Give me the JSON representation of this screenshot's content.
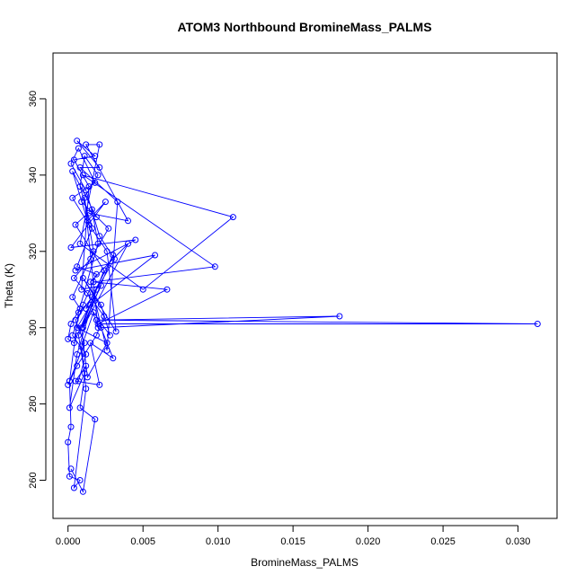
{
  "chart_data": {
    "type": "scatter",
    "title": "ATOM3 Northbound BromineMass_PALMS",
    "xlabel": "BromineMass_PALMS",
    "ylabel": "Theta (K)",
    "xlim": [
      -0.001,
      0.0326
    ],
    "ylim": [
      250,
      372
    ],
    "x_ticks": [
      {
        "value": 0.0,
        "label": "0.000"
      },
      {
        "value": 0.005,
        "label": "0.005"
      },
      {
        "value": 0.01,
        "label": "0.010"
      },
      {
        "value": 0.015,
        "label": "0.015"
      },
      {
        "value": 0.02,
        "label": "0.020"
      },
      {
        "value": 0.025,
        "label": "0.025"
      },
      {
        "value": 0.03,
        "label": "0.030"
      }
    ],
    "y_ticks": [
      {
        "value": 260,
        "label": "260"
      },
      {
        "value": 280,
        "label": "280"
      },
      {
        "value": 300,
        "label": "300"
      },
      {
        "value": 320,
        "label": "320"
      },
      {
        "value": 340,
        "label": "340"
      },
      {
        "value": 360,
        "label": "360"
      }
    ],
    "connect_points": true,
    "marker": "open-circle",
    "grid": false,
    "series": [
      {
        "color": "#0000ff",
        "points": [
          [
            0.0002,
            263
          ],
          [
            0.001,
            257
          ],
          [
            0.0018,
            276
          ],
          [
            0.0008,
            279
          ],
          [
            0.0012,
            290
          ],
          [
            0.0005,
            286
          ],
          [
            0.0021,
            285
          ],
          [
            0.0015,
            296
          ],
          [
            0.003,
            292
          ],
          [
            0.0022,
            300
          ],
          [
            0.0181,
            303
          ],
          [
            0.0019,
            302
          ],
          [
            0.0313,
            301
          ],
          [
            0.002,
            301
          ],
          [
            0.0066,
            310
          ],
          [
            0.0017,
            312
          ],
          [
            0.0098,
            316
          ],
          [
            0.001,
            340
          ],
          [
            0.011,
            329
          ],
          [
            0.005,
            310
          ],
          [
            0.0008,
            322
          ],
          [
            0.0021,
            348
          ],
          [
            0.0012,
            348
          ],
          [
            0.004,
            328
          ],
          [
            0.0014,
            330
          ],
          [
            0.0019,
            329
          ],
          [
            0.0003,
            341
          ],
          [
            0.0013,
            328
          ],
          [
            0.0025,
            333
          ],
          [
            0.0002,
            321
          ],
          [
            0.0045,
            323
          ],
          [
            0.0005,
            315
          ],
          [
            0.0058,
            319
          ],
          [
            0.0012,
            305
          ],
          [
            0.003,
            319
          ],
          [
            0.001,
            300
          ],
          [
            0.004,
            322
          ],
          [
            0.0015,
            312
          ],
          [
            0.0026,
            294
          ],
          [
            0.0033,
            333
          ],
          [
            0.0008,
            342
          ],
          [
            0.0021,
            342
          ],
          [
            0.0006,
            349
          ],
          [
            0.0018,
            345
          ],
          [
            0.0004,
            344
          ],
          [
            0.0014,
            337
          ],
          [
            0.0009,
            310
          ],
          [
            0.0022,
            311
          ],
          [
            0.0007,
            298
          ],
          [
            0.0011,
            288
          ],
          [
            0.0001,
            279
          ],
          [
            0.0006,
            293
          ],
          [
            0.0019,
            310
          ],
          [
            0.0004,
            296
          ],
          [
            0.0,
            297
          ],
          [
            0.0002,
            301
          ],
          [
            0.0008,
            305
          ],
          [
            0.0003,
            308
          ],
          [
            0.0017,
            320
          ],
          [
            0.0011,
            334
          ],
          [
            0.002,
            300
          ],
          [
            0.0015,
            306
          ],
          [
            0.0006,
            300
          ],
          [
            0.0026,
            296
          ],
          [
            0.0013,
            287
          ],
          [
            0.0009,
            300
          ],
          [
            0.0024,
            315
          ],
          [
            0.0005,
            327
          ],
          [
            0.0016,
            331
          ],
          [
            0.002,
            322
          ],
          [
            0.0007,
            304
          ],
          [
            0.0001,
            286
          ],
          [
            0.0002,
            274
          ],
          [
            0.0,
            270
          ],
          [
            0.0001,
            261
          ],
          [
            0.0008,
            260
          ],
          [
            0.0004,
            258
          ],
          [
            0.0012,
            284
          ],
          [
            0.0009,
            295
          ],
          [
            0.0017,
            304
          ],
          [
            0.0028,
            298
          ],
          [
            0.0022,
            306
          ],
          [
            0.001,
            313
          ],
          [
            0.0032,
            299
          ],
          [
            0.0026,
            320
          ],
          [
            0.0014,
            327
          ],
          [
            0.0003,
            334
          ],
          [
            0.0018,
            338
          ],
          [
            0.0007,
            347
          ],
          [
            0.0002,
            343
          ],
          [
            0.0012,
            336
          ],
          [
            0.0021,
            324
          ],
          [
            0.0031,
            318
          ],
          [
            0.0016,
            308
          ],
          [
            0.0005,
            302
          ],
          [
            0.0011,
            296
          ],
          [
            0.0,
            285
          ],
          [
            0.0006,
            290
          ],
          [
            0.0019,
            298
          ],
          [
            0.0024,
            303
          ],
          [
            0.0013,
            309
          ],
          [
            0.0004,
            313
          ],
          [
            0.0015,
            318
          ],
          [
            0.0027,
            326
          ],
          [
            0.0009,
            333
          ],
          [
            0.002,
            340
          ],
          [
            0.0011,
            345
          ],
          [
            0.0008,
            337
          ],
          [
            0.0016,
            326
          ],
          [
            0.0006,
            316
          ],
          [
            0.0019,
            314
          ],
          [
            0.001,
            306
          ],
          [
            0.0003,
            298
          ],
          [
            0.0012,
            293
          ],
          [
            0.0007,
            286
          ]
        ]
      }
    ]
  }
}
